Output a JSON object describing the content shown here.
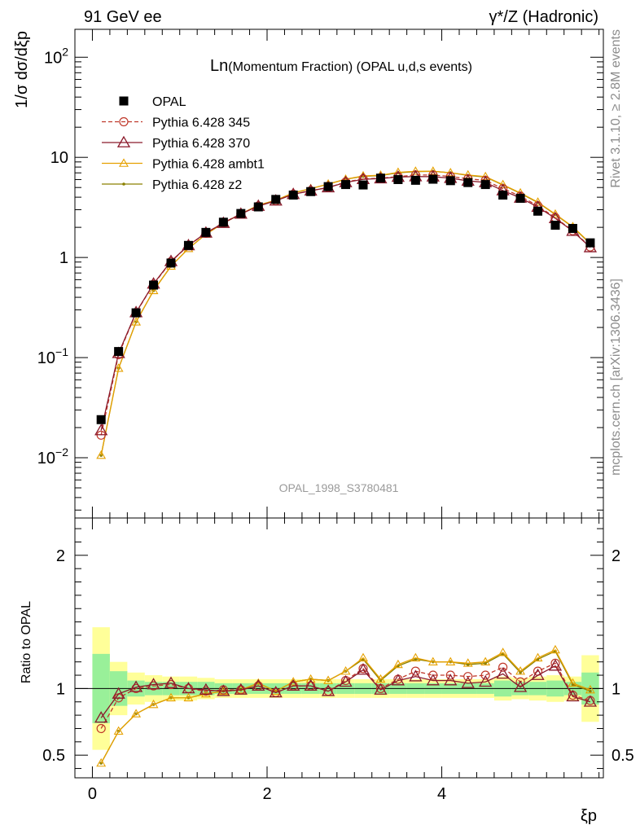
{
  "header": {
    "left": "91 GeV ee",
    "right": "γ*/Z (Hadronic)"
  },
  "side_labels": {
    "top": "Rivet 3.1.10, ≥ 2.8M events",
    "bottom": "mcplots.cern.ch [arXiv:1306.3436]"
  },
  "chart_data": [
    {
      "type": "scatter",
      "title": "Ln(Momentum Fraction) (OPAL u,d,s events)",
      "title_prefix": "Ln",
      "title_rest": "(Momentum Fraction) (OPAL u,d,s events)",
      "ylabel": "1/σ dσ/dξp",
      "watermark": "OPAL_1998_S3780481",
      "yscale": "log",
      "xlim": [
        -0.2,
        5.85
      ],
      "ylim": [
        0.0025,
        190
      ],
      "ytick_labels": [
        "10^-2",
        "10^-1",
        "1",
        "10",
        "10^2"
      ],
      "legend_position": "top-left",
      "x": [
        0.1,
        0.3,
        0.5,
        0.7,
        0.9,
        1.1,
        1.3,
        1.5,
        1.7,
        1.9,
        2.1,
        2.3,
        2.5,
        2.7,
        2.9,
        3.1,
        3.3,
        3.5,
        3.7,
        3.9,
        4.1,
        4.3,
        4.5,
        4.7,
        4.9,
        5.1,
        5.3,
        5.5,
        5.7
      ],
      "opal": [
        0.024,
        0.115,
        0.28,
        0.53,
        0.88,
        1.32,
        1.78,
        2.25,
        2.75,
        3.2,
        3.8,
        4.2,
        4.55,
        5.1,
        5.35,
        5.3,
        6.2,
        6.0,
        5.9,
        6.05,
        5.85,
        5.6,
        5.35,
        4.2,
        3.9,
        2.9,
        2.1,
        1.95,
        1.4
      ],
      "series": [
        {
          "name": "Pythia 6.428 345",
          "color": "#c0392b",
          "marker": "circle",
          "dash": true,
          "ratio": [
            0.7,
            0.93,
            1.0,
            1.02,
            1.03,
            1.0,
            0.98,
            0.99,
            0.99,
            1.02,
            0.97,
            1.02,
            1.02,
            0.98,
            1.06,
            1.15,
            1.0,
            1.07,
            1.13,
            1.1,
            1.1,
            1.09,
            1.1,
            1.16,
            1.05,
            1.13,
            1.19,
            0.95,
            0.91
          ]
        },
        {
          "name": "Pythia 6.428 370",
          "color": "#8b1a2b",
          "marker": "triangle",
          "dash": false,
          "ratio": [
            0.78,
            0.96,
            1.01,
            1.03,
            1.04,
            1.0,
            0.99,
            0.98,
            0.99,
            1.02,
            0.97,
            1.02,
            1.02,
            0.98,
            1.05,
            1.14,
            0.99,
            1.06,
            1.09,
            1.06,
            1.06,
            1.04,
            1.05,
            1.11,
            1.01,
            1.1,
            1.17,
            0.94,
            0.9
          ]
        },
        {
          "name": "Pythia 6.428 ambt1",
          "color": "#e6a100",
          "marker": "triangle-small",
          "dash": false,
          "ratio": [
            0.44,
            0.68,
            0.81,
            0.88,
            0.93,
            0.93,
            0.96,
            0.98,
            0.99,
            1.04,
            0.98,
            1.05,
            1.07,
            1.06,
            1.13,
            1.23,
            1.07,
            1.18,
            1.23,
            1.2,
            1.2,
            1.19,
            1.2,
            1.27,
            1.13,
            1.23,
            1.29,
            1.04,
            0.99
          ]
        },
        {
          "name": "Pythia 6.428 z2",
          "color": "#8a8000",
          "marker": "dot",
          "dash": false,
          "ratio": [
            0.44,
            0.68,
            0.81,
            0.88,
            0.93,
            0.93,
            0.96,
            0.98,
            0.99,
            1.04,
            0.98,
            1.05,
            1.07,
            1.06,
            1.13,
            1.22,
            1.06,
            1.17,
            1.22,
            1.2,
            1.2,
            1.18,
            1.19,
            1.26,
            1.12,
            1.22,
            1.28,
            1.03,
            0.98
          ]
        }
      ]
    },
    {
      "type": "line",
      "ylabel": "Ratio to OPAL",
      "xlabel": "ξp",
      "xlim": [
        -0.2,
        5.85
      ],
      "ylim": [
        0.33,
        2.28
      ],
      "xtick_labels": [
        "0",
        "2",
        "4"
      ],
      "ytick_labels": [
        "0.5",
        "1",
        "2"
      ],
      "band_inner": [
        0.26,
        0.13,
        0.06,
        0.05,
        0.05,
        0.05,
        0.05,
        0.04,
        0.04,
        0.04,
        0.04,
        0.04,
        0.04,
        0.04,
        0.04,
        0.04,
        0.04,
        0.04,
        0.04,
        0.04,
        0.04,
        0.04,
        0.04,
        0.06,
        0.05,
        0.05,
        0.06,
        0.05,
        0.12
      ],
      "band_outer": [
        0.46,
        0.2,
        0.12,
        0.1,
        0.09,
        0.09,
        0.08,
        0.07,
        0.07,
        0.07,
        0.07,
        0.07,
        0.07,
        0.07,
        0.07,
        0.07,
        0.07,
        0.07,
        0.07,
        0.07,
        0.07,
        0.07,
        0.07,
        0.09,
        0.08,
        0.09,
        0.1,
        0.09,
        0.25
      ]
    }
  ]
}
